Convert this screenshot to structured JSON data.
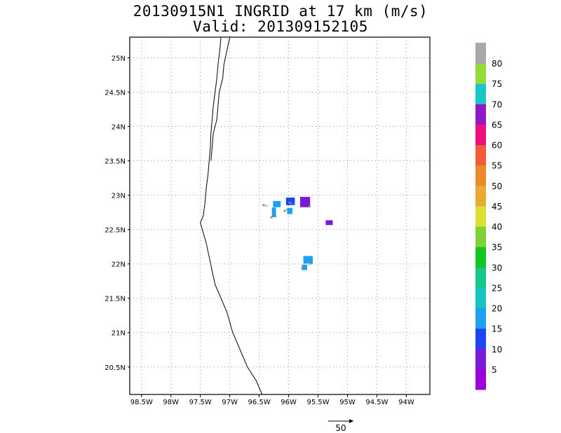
{
  "title": {
    "line1": "20130915N1 INGRID at 17 km (m/s)",
    "line2": "Valid: 201309152105"
  },
  "map": {
    "lon_labels": [
      "98.5W",
      "98W",
      "97.5W",
      "97W",
      "96.5W",
      "96W",
      "95.5W",
      "95W",
      "94.5W",
      "94W"
    ],
    "lon_values": [
      -98.5,
      -98,
      -97.5,
      -97,
      -96.5,
      -96,
      -95.5,
      -95,
      -94.5,
      -94
    ],
    "lat_labels": [
      "25N",
      "24.5N",
      "24N",
      "23.5N",
      "23N",
      "22.5N",
      "22N",
      "21.5N",
      "21N",
      "20.5N"
    ],
    "lat_values": [
      25,
      24.5,
      24,
      23.5,
      23,
      22.5,
      22,
      21.5,
      21,
      20.5
    ],
    "lon_range": [
      -98.7,
      -93.6
    ],
    "lat_range": [
      20.1,
      25.3
    ],
    "grid": "dotted",
    "coastline": [
      [
        -97.15,
        25.3
      ],
      [
        -97.17,
        25.1
      ],
      [
        -97.2,
        24.9
      ],
      [
        -97.22,
        24.7
      ],
      [
        -97.25,
        24.5
      ],
      [
        -97.28,
        24.3
      ],
      [
        -97.3,
        24.1
      ],
      [
        -97.32,
        23.9
      ],
      [
        -97.33,
        23.7
      ],
      [
        -97.35,
        23.5
      ],
      [
        -97.37,
        23.3
      ],
      [
        -97.4,
        23.1
      ],
      [
        -97.42,
        22.9
      ],
      [
        -97.45,
        22.7
      ],
      [
        -97.5,
        22.6
      ],
      [
        -97.45,
        22.45
      ],
      [
        -97.4,
        22.3
      ],
      [
        -97.35,
        22.1
      ],
      [
        -97.3,
        21.9
      ],
      [
        -97.25,
        21.7
      ],
      [
        -97.15,
        21.5
      ],
      [
        -97.05,
        21.3
      ],
      [
        -96.95,
        21.0
      ],
      [
        -96.85,
        20.8
      ],
      [
        -96.7,
        20.5
      ],
      [
        -96.55,
        20.3
      ],
      [
        -96.45,
        20.1
      ]
    ],
    "lagoon_line": [
      [
        -97.0,
        25.3
      ],
      [
        -97.05,
        25.1
      ],
      [
        -97.1,
        24.9
      ],
      [
        -97.12,
        24.7
      ],
      [
        -97.18,
        24.5
      ],
      [
        -97.2,
        24.3
      ],
      [
        -97.22,
        24.1
      ],
      [
        -97.28,
        23.9
      ],
      [
        -97.3,
        23.7
      ],
      [
        -97.32,
        23.5
      ]
    ],
    "wind_cells": [
      {
        "lon": -96.2,
        "lat": 22.87,
        "w": 0.13,
        "h": 0.09,
        "speed": 16
      },
      {
        "lon": -96.25,
        "lat": 22.75,
        "w": 0.07,
        "h": 0.14,
        "speed": 16
      },
      {
        "lon": -95.97,
        "lat": 22.91,
        "w": 0.15,
        "h": 0.11,
        "speed": 12
      },
      {
        "lon": -95.98,
        "lat": 22.77,
        "w": 0.09,
        "h": 0.09,
        "speed": 15
      },
      {
        "lon": -95.72,
        "lat": 22.9,
        "w": 0.17,
        "h": 0.15,
        "speed": 7
      },
      {
        "lon": -95.31,
        "lat": 22.6,
        "w": 0.12,
        "h": 0.07,
        "speed": 7
      },
      {
        "lon": -95.67,
        "lat": 22.06,
        "w": 0.16,
        "h": 0.11,
        "speed": 16
      },
      {
        "lon": -95.73,
        "lat": 21.95,
        "w": 0.09,
        "h": 0.08,
        "speed": 17
      }
    ],
    "wind_vectors": [
      {
        "lon": -96.35,
        "lat": 22.84,
        "u": -12,
        "v": 3
      },
      {
        "lon": -96.2,
        "lat": 22.7,
        "u": -14,
        "v": -4
      },
      {
        "lon": -96.02,
        "lat": 22.8,
        "u": -8,
        "v": -6
      },
      {
        "lon": -95.92,
        "lat": 22.87,
        "u": -10,
        "v": 4
      },
      {
        "lon": -95.62,
        "lat": 22.85,
        "u": -6,
        "v": -4
      },
      {
        "lon": -95.66,
        "lat": 21.98,
        "u": 8,
        "v": 6
      },
      {
        "lon": -95.75,
        "lat": 21.96,
        "u": -4,
        "v": -5
      }
    ]
  },
  "colorbar": {
    "labels": [
      "5",
      "10",
      "15",
      "20",
      "25",
      "30",
      "35",
      "40",
      "45",
      "50",
      "55",
      "60",
      "65",
      "70",
      "75",
      "80"
    ],
    "colors": [
      "#9b00d9",
      "#7b1ad6",
      "#1d46f2",
      "#1fa0f0",
      "#16c2c2",
      "#16c98a",
      "#13c61c",
      "#7ed236",
      "#dce035",
      "#e4ad32",
      "#e98a2b",
      "#f15a3a",
      "#f10d7c",
      "#8e19c6",
      "#1bc6c9",
      "#95da3a",
      "#a8a8a8"
    ]
  },
  "reference_vector": {
    "label": "50"
  }
}
